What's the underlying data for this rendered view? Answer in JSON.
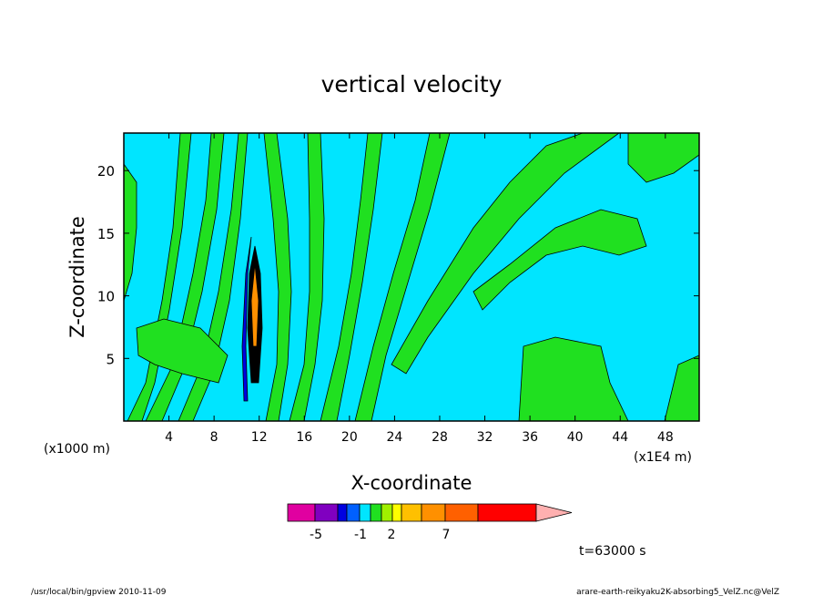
{
  "chart_data": {
    "type": "heatmap",
    "title": "vertical velocity",
    "xlabel": "X-coordinate",
    "ylabel": "Z-coordinate",
    "x_unit_left": "(x1000 m)",
    "x_unit_right": "(x1E4 m)",
    "xlim": [
      0,
      51
    ],
    "ylim": [
      0,
      23
    ],
    "x_ticks": [
      4,
      8,
      12,
      16,
      20,
      24,
      28,
      32,
      36,
      40,
      44,
      48
    ],
    "y_ticks": [
      5,
      10,
      15,
      20
    ],
    "colorbar": {
      "colors": [
        "#e000a0",
        "#8000c0",
        "#0000e0",
        "#0060ff",
        "#00e5ff",
        "#20e020",
        "#a0f000",
        "#ffff00",
        "#ffc000",
        "#ff9000",
        "#ff6000",
        "#ff0000",
        "#ff8080",
        "#ffb0b0"
      ],
      "labels": [
        "-5",
        "-1",
        "2",
        "7"
      ]
    },
    "time_label": "t=63000 s"
  },
  "footer": {
    "left": "/usr/local/bin/gpview  2010-11-09",
    "right": "arare-earth-reikyaku2K-absorbing5_VelZ.nc@VelZ"
  }
}
